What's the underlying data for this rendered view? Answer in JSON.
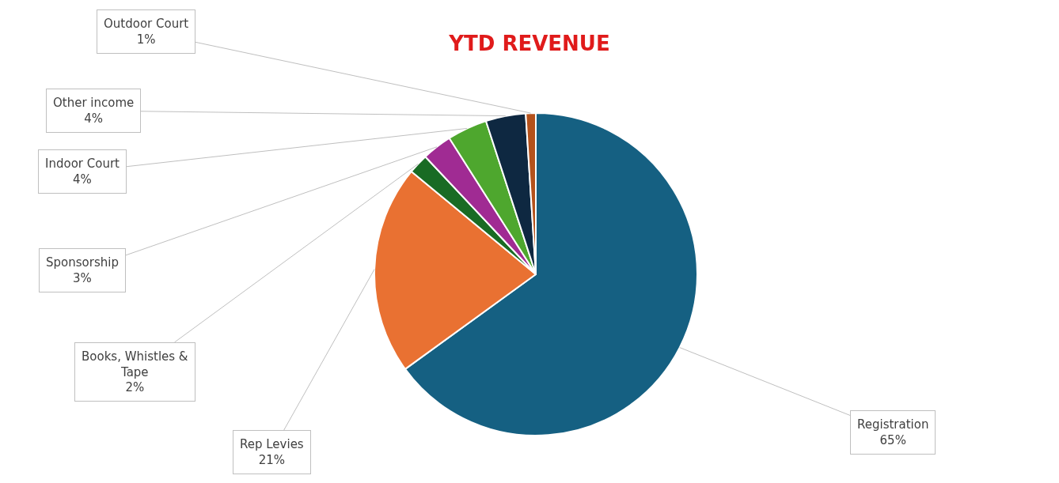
{
  "chart_data": {
    "type": "pie",
    "title": "YTD REVENUE",
    "categories": [
      "Registration",
      "Rep Levies",
      "Books, Whistles & Tape",
      "Sponsorship",
      "Indoor Court",
      "Other income",
      "Outdoor Court"
    ],
    "values": [
      65,
      21,
      2,
      3,
      4,
      4,
      1
    ],
    "value_labels": [
      "65%",
      "21%",
      "2%",
      "3%",
      "4%",
      "4%",
      "1%"
    ],
    "colors": [
      "#156082",
      "#e97132",
      "#196b24",
      "#a02b93",
      "#4ea72e",
      "#0e2841",
      "#b4521c"
    ]
  }
}
